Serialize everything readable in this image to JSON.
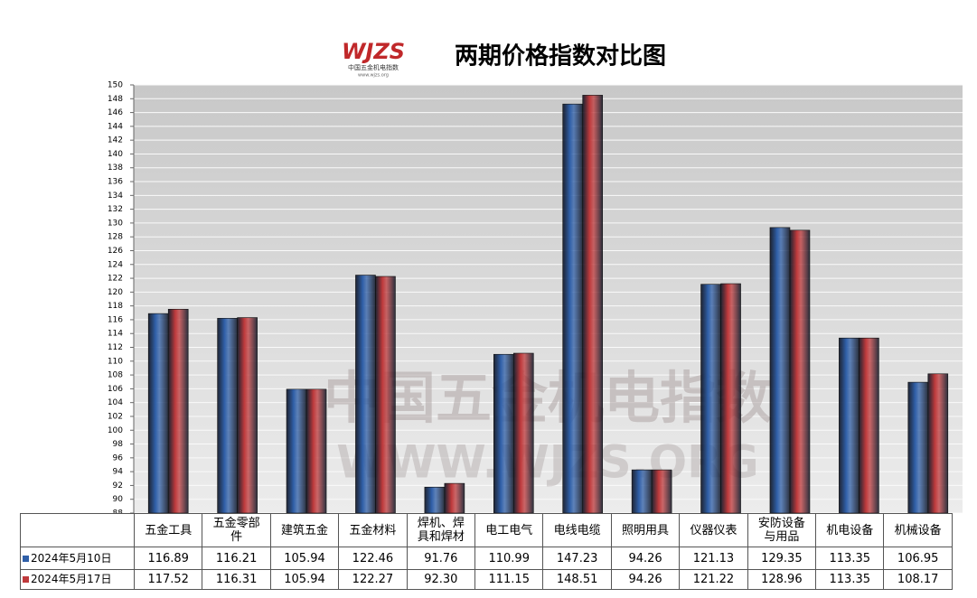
{
  "chart_data": {
    "type": "bar",
    "title": "两期价格指数对比图",
    "logo": {
      "text": "WJZS",
      "caption": "中国五金机电指数",
      "url": "www.wjzs.org"
    },
    "watermark": {
      "line1": "中国五金机电指数",
      "line2": "WWW.WJZS.ORG"
    },
    "categories": [
      "五金工具",
      "五金零部件",
      "建筑五金",
      "五金材料",
      "焊机、焊具和焊材",
      "电工电气",
      "电线电缆",
      "照明用具",
      "仪器仪表",
      "安防设备与用品",
      "机电设备",
      "机械设备"
    ],
    "series": [
      {
        "name": "2024年5月10日",
        "color": "#2f5fa8",
        "values": [
          116.89,
          116.21,
          105.94,
          122.46,
          91.76,
          110.99,
          147.23,
          94.26,
          121.13,
          129.35,
          113.35,
          106.95
        ],
        "value_labels": [
          "116.89",
          "116.21",
          "105.94",
          "122.46",
          "91.76",
          "110.99",
          "147.23",
          "94.26",
          "121.13",
          "129.35",
          "113.35",
          "106.95"
        ]
      },
      {
        "name": "2024年5月17日",
        "color": "#bf3a3c",
        "values": [
          117.52,
          116.31,
          105.94,
          122.27,
          92.3,
          111.15,
          148.51,
          94.26,
          121.22,
          128.96,
          113.35,
          108.17
        ],
        "value_labels": [
          "117.52",
          "116.31",
          "105.94",
          "122.27",
          "92.30",
          "111.15",
          "148.51",
          "94.26",
          "121.22",
          "128.96",
          "113.35",
          "108.17"
        ]
      }
    ],
    "ylim": [
      88,
      150
    ],
    "yticks": [
      88,
      90,
      92,
      94,
      96,
      98,
      100,
      102,
      104,
      106,
      108,
      110,
      112,
      114,
      116,
      118,
      120,
      122,
      124,
      126,
      128,
      130,
      132,
      134,
      136,
      138,
      140,
      142,
      144,
      146,
      148,
      150
    ],
    "grid": true
  }
}
